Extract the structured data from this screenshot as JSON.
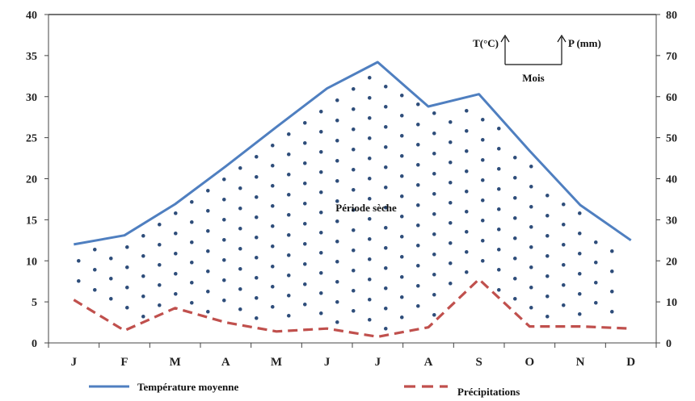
{
  "chart_data": {
    "type": "line",
    "title": "",
    "categories": [
      "J",
      "F",
      "M",
      "A",
      "M",
      "J",
      "J",
      "A",
      "S",
      "O",
      "N",
      "D"
    ],
    "y_left": {
      "label": "T(°C)",
      "ylim": [
        0,
        40
      ],
      "ticks": [
        "0",
        "5",
        "10",
        "15",
        "20",
        "25",
        "30",
        "35",
        "40"
      ]
    },
    "y_right": {
      "label": "P (mm)",
      "ylim": [
        0,
        80
      ],
      "ticks": [
        "0",
        "10",
        "20",
        "30",
        "40",
        "50",
        "60",
        "70",
        "80"
      ]
    },
    "x_label": "Mois",
    "series": [
      {
        "name": "Température moyenne",
        "axis": "left",
        "color": "#4f7fc0",
        "style": "solid",
        "values": [
          12.0,
          13.1,
          16.9,
          21.5,
          26.3,
          31.0,
          34.2,
          28.8,
          30.3,
          23.4,
          16.8,
          12.5
        ]
      },
      {
        "name": "Précipitations",
        "axis": "right",
        "color": "#c0504d",
        "style": "dashed",
        "values": [
          10.5,
          3.0,
          8.5,
          5.0,
          2.8,
          3.5,
          1.5,
          3.8,
          15.5,
          4.0,
          4.0,
          3.5
        ]
      }
    ],
    "shaded_region": {
      "label": "Période sèche",
      "pattern": "dots",
      "dot_color": "#2e4d7a"
    },
    "legend_position": "bottom",
    "grid": false
  }
}
